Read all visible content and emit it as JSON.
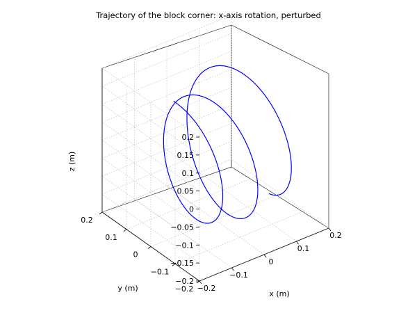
{
  "chart_data": {
    "type": "line",
    "projection": "3d",
    "title": "Trajectory of the block corner: x-axis rotation, perturbed",
    "xlabel": "x (m)",
    "ylabel": "y (m)",
    "zlabel": "z (m)",
    "xlim": [
      -0.2,
      0.2
    ],
    "ylim": [
      -0.2,
      0.2
    ],
    "zlim": [
      -0.2,
      0.2
    ],
    "x_ticks": [
      "-0.2",
      "-0.1",
      "0",
      "0.1",
      "0.2"
    ],
    "y_ticks": [
      "-0.2",
      "-0.1",
      "0",
      "0.1",
      "0.2"
    ],
    "z_ticks": [
      "-0.2",
      "-0.15",
      "-0.1",
      "-0.05",
      "0",
      "0.05",
      "0.1",
      "0.15",
      "0.2"
    ],
    "grid": true,
    "box": true,
    "series": [
      {
        "color": "#0000ff",
        "trajectory": {
          "x_range": [
            -0.13,
            0.13
          ],
          "radius": 0.19,
          "loops": 2.45,
          "start_angle_deg": 90
        }
      }
    ]
  }
}
